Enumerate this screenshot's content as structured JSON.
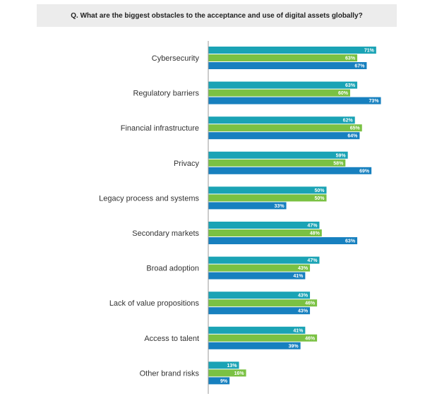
{
  "chart_data": {
    "type": "bar",
    "orientation": "horizontal",
    "title": "Q. What are the biggest obstacles to the acceptance and use of digital assets globally?",
    "categories": [
      "Cybersecurity",
      "Regulatory barriers",
      "Financial infrastructure",
      "Privacy",
      "Legacy process and systems",
      "Secondary markets",
      "Broad adoption",
      "Lack of value propositions",
      "Access to talent",
      "Other brand risks"
    ],
    "series": [
      {
        "color": "#1aa3b5",
        "values": [
          71,
          63,
          62,
          59,
          50,
          47,
          47,
          43,
          41,
          13
        ]
      },
      {
        "color": "#7ac143",
        "values": [
          63,
          60,
          65,
          58,
          50,
          48,
          43,
          46,
          46,
          16
        ]
      },
      {
        "color": "#1780bf",
        "values": [
          67,
          73,
          64,
          69,
          33,
          63,
          41,
          43,
          39,
          9
        ]
      }
    ],
    "value_suffix": "%",
    "xlim": [
      0,
      80
    ],
    "grid": false
  }
}
